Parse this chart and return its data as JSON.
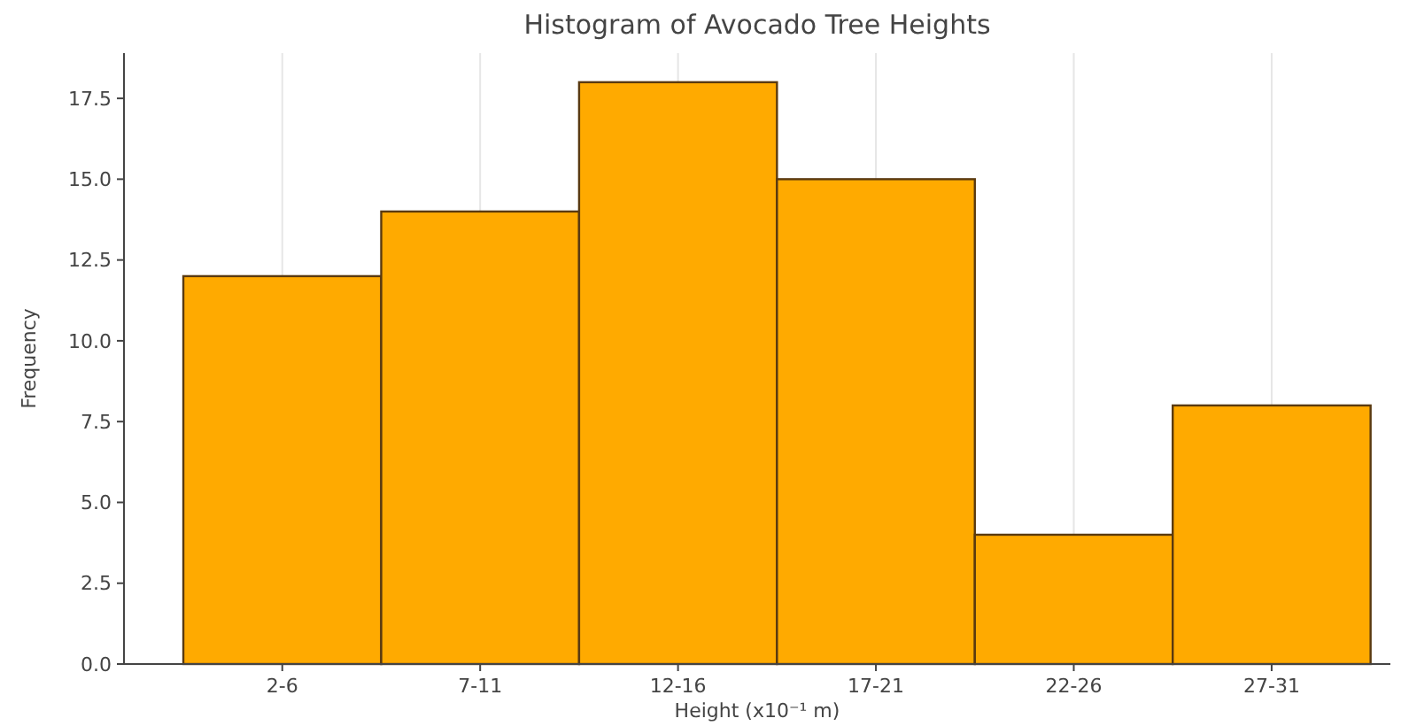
{
  "chart_data": {
    "type": "bar",
    "title": "Histogram of Avocado Tree Heights",
    "xlabel": "Height (x10⁻¹ m)",
    "ylabel": "Frequency",
    "categories": [
      "2-6",
      "7-11",
      "12-16",
      "17-21",
      "22-26",
      "27-31"
    ],
    "values": [
      12,
      14,
      18,
      15,
      4,
      8
    ],
    "color": "#ffaa00",
    "ylim": [
      0,
      18.9
    ],
    "yticks": [
      {
        "value": 0,
        "label": "0.0"
      },
      2.5,
      {
        "value": 5,
        "label": "5.0"
      },
      7.5,
      {
        "value": 10,
        "label": "10.0"
      },
      12.5,
      {
        "value": 15,
        "label": "15.0"
      },
      17.5
    ],
    "grid": "x"
  }
}
